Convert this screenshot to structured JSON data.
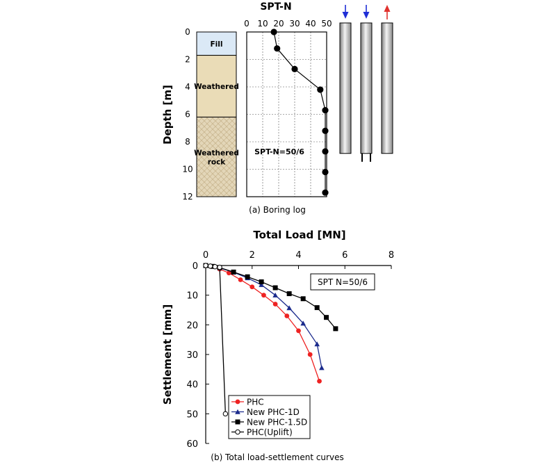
{
  "chart_data": [
    {
      "type": "line",
      "title": "SPT-N",
      "ylabel": "Depth [m]",
      "xlim": [
        0,
        50
      ],
      "ylim": [
        0,
        12
      ],
      "xticks": [
        "0",
        "10",
        "20",
        "30",
        "40",
        "50"
      ],
      "yticks": [
        "0",
        "2",
        "4",
        "6",
        "8",
        "10",
        "12"
      ],
      "y_inverted": true,
      "grid": true,
      "series": [
        {
          "points": [
            {
              "n": 17,
              "depth": 0
            },
            {
              "n": 19,
              "depth": 1.2
            },
            {
              "n": 30,
              "depth": 2.7
            },
            {
              "n": 46,
              "depth": 4.2
            },
            {
              "n": 52,
              "depth": 5.7
            },
            {
              "n": 52,
              "depth": 7.2
            },
            {
              "n": 52,
              "depth": 8.7
            },
            {
              "n": 52,
              "depth": 10.2
            },
            {
              "n": 52,
              "depth": 11.7
            }
          ]
        }
      ],
      "annotation": "SPT-N=50/6",
      "soil_layers": [
        {
          "label": "Fill",
          "top": 0,
          "bottom": 1.7,
          "color": "#dbe9f6"
        },
        {
          "label": "Weathered",
          "top": 1.7,
          "bottom": 6.2,
          "color": "#eadcb7"
        },
        {
          "label": "Weathered\nrock",
          "top": 6.2,
          "bottom": 12,
          "color": "#e1d3b4"
        }
      ],
      "piles": [
        {
          "arrow": "down",
          "arrow_color": "#1f2ed6",
          "bottom_depth": 9.0,
          "open_end": false
        },
        {
          "arrow": "down",
          "arrow_color": "#1f2ed6",
          "bottom_depth": 9.0,
          "open_end": true
        },
        {
          "arrow": "up",
          "arrow_color": "#e0322e",
          "bottom_depth": 9.0,
          "open_end": false
        }
      ],
      "caption": "(a) Boring log"
    },
    {
      "type": "line",
      "title": "Total Load [MN]",
      "ylabel": "Settlement [mm]",
      "xlim": [
        0,
        8
      ],
      "ylim": [
        0,
        60
      ],
      "xticks": [
        "0",
        "2",
        "4",
        "6",
        "8"
      ],
      "yticks": [
        "0",
        "10",
        "20",
        "30",
        "40",
        "50",
        "60"
      ],
      "y_inverted": true,
      "grid": false,
      "legend_position": "bottom-left",
      "annotation": "SPT N=50/6",
      "series": [
        {
          "name": "PHC",
          "color": "#ee2222",
          "marker": "circle",
          "x": [
            0,
            0.3,
            0.6,
            1.0,
            1.5,
            2.0,
            2.5,
            3.0,
            3.5,
            4.0,
            4.5,
            4.9
          ],
          "y": [
            0,
            0.3,
            1.2,
            2.5,
            4.8,
            7.2,
            10.0,
            13.0,
            17.0,
            22.0,
            30.0,
            39.0
          ]
        },
        {
          "name": "New PHC-1D",
          "color": "#1a2a8c",
          "marker": "triangle",
          "x": [
            0,
            0.3,
            0.6,
            1.2,
            1.8,
            2.4,
            3.0,
            3.6,
            4.2,
            4.8,
            5.0
          ],
          "y": [
            0,
            0.3,
            0.8,
            2.3,
            4.2,
            6.5,
            10.0,
            14.3,
            19.5,
            26.5,
            34.5
          ]
        },
        {
          "name": "New PHC-1.5D",
          "color": "#000000",
          "marker": "square",
          "x": [
            0,
            0.3,
            0.6,
            1.2,
            1.8,
            2.4,
            3.0,
            3.6,
            4.2,
            4.8,
            5.2,
            5.6
          ],
          "y": [
            0,
            0.3,
            0.7,
            2.2,
            3.8,
            5.5,
            7.5,
            9.5,
            11.2,
            14.2,
            17.5,
            21.3
          ]
        },
        {
          "name": "PHC(Uplift)",
          "color": "#000000",
          "marker": "open-circle",
          "x": [
            0,
            0.2,
            0.4,
            0.6,
            0.85
          ],
          "y": [
            0,
            0.2,
            0.4,
            0.6,
            50.0
          ]
        }
      ],
      "caption": "(b) Total load-settlement curves"
    }
  ]
}
